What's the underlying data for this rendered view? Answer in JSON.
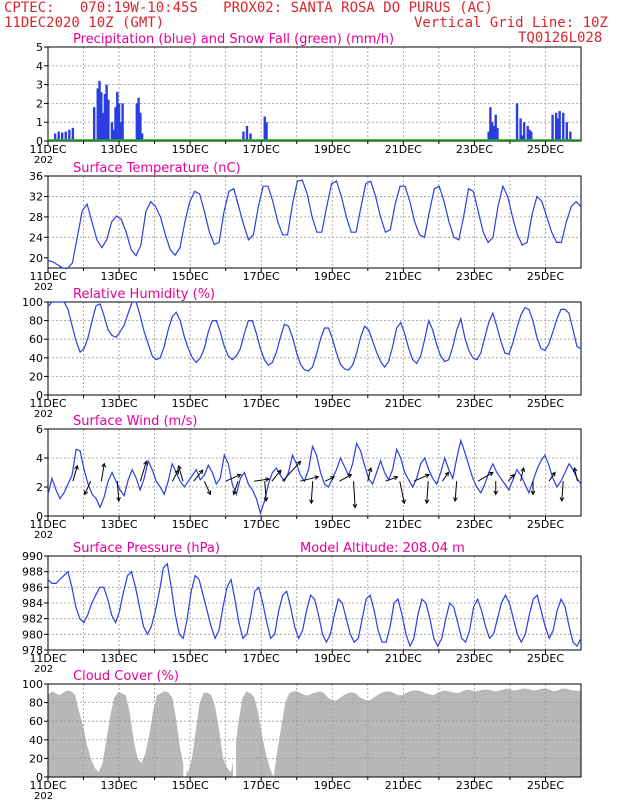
{
  "header": {
    "line1_left": "CPTEC:   070:19W-10:45S   PROX02: SANTA ROSA DO PURUS (AC)",
    "line2_left": "11DEC2020 10Z (GMT)",
    "line2_right": "Vertical Grid Line: 10Z",
    "code": "TQ0126L028"
  },
  "colors": {
    "header_text": "#d9262c",
    "title_text": "#e4009a",
    "line": "#2b3fe0",
    "precip_bar": "#2b3fe0",
    "snow": "#16b016",
    "cloud_fill": "#b8b8b8",
    "grid": "#999999"
  },
  "x_ticks": [
    "11DEC",
    "13DEC",
    "15DEC",
    "17DEC",
    "19DEC",
    "21DEC",
    "23DEC",
    "25DEC"
  ],
  "x_tick_overlap_text": "202",
  "chart_data": [
    {
      "id": "precip",
      "type": "bar",
      "title": "Precipitation (blue) and Snow Fall (green) (mm/h)",
      "ylim": [
        0,
        5
      ],
      "yticks": [
        "0",
        "1",
        "2",
        "3",
        "4",
        "5"
      ],
      "snow_value": 0,
      "x": [
        0.2,
        0.3,
        0.4,
        0.5,
        0.6,
        0.7,
        1.3,
        1.4,
        1.45,
        1.5,
        1.55,
        1.6,
        1.65,
        1.7,
        1.8,
        1.85,
        1.9,
        1.95,
        2.0,
        2.05,
        2.1,
        2.5,
        2.55,
        2.6,
        2.65,
        5.5,
        5.6,
        5.7,
        6.1,
        6.15,
        12.4,
        12.45,
        12.5,
        12.55,
        12.6,
        12.65,
        13.2,
        13.3,
        13.35,
        13.4,
        13.5,
        13.55,
        13.6,
        14.2,
        14.3,
        14.35,
        14.4,
        14.5,
        14.6,
        14.7
      ],
      "values": [
        0.4,
        0.5,
        0.45,
        0.5,
        0.6,
        0.7,
        1.8,
        2.8,
        3.2,
        2.6,
        1.5,
        2.5,
        3.0,
        2.2,
        1.0,
        0.6,
        1.8,
        2.6,
        2.0,
        1.0,
        2.0,
        2.0,
        2.3,
        1.5,
        0.4,
        0.5,
        0.8,
        0.4,
        1.3,
        1.0,
        0.5,
        1.8,
        1.0,
        0.8,
        1.4,
        0.7,
        2.0,
        1.2,
        0.3,
        1.0,
        0.8,
        0.6,
        0.5,
        1.4,
        1.5,
        1.2,
        1.6,
        1.5,
        1.0,
        0.5
      ]
    },
    {
      "id": "temp",
      "type": "line",
      "title": "Surface Temperature (nC)",
      "ylim": [
        18,
        36
      ],
      "yticks": [
        "20",
        "24",
        "28",
        "32",
        "36"
      ],
      "series": [
        {
          "values": [
            19.5,
            19.2,
            18.6,
            18.0,
            17.9,
            19.0,
            24.0,
            29.2,
            30.5,
            27.0,
            23.5,
            22.0,
            23.5,
            27.0,
            28.2,
            27.5,
            25.0,
            21.6,
            20.4,
            22.5,
            29.0,
            31.0,
            30.0,
            28.0,
            24.5,
            21.6,
            20.5,
            22.0,
            27.0,
            31.0,
            33.0,
            32.5,
            29.0,
            25.0,
            22.6,
            23.0,
            29.0,
            33.0,
            33.5,
            30.0,
            26.5,
            23.5,
            24.5,
            30.0,
            34.0,
            34.0,
            31.0,
            27.0,
            24.5,
            24.5,
            30.5,
            35.0,
            35.2,
            32.5,
            28.0,
            25.0,
            25.0,
            30.0,
            34.5,
            35.0,
            32.0,
            28.0,
            25.0,
            25.0,
            30.0,
            34.5,
            35.0,
            32.0,
            28.0,
            25.0,
            25.5,
            30.5,
            34.0,
            34.0,
            31.0,
            27.0,
            24.5,
            24.0,
            29.0,
            33.5,
            34.0,
            31.0,
            27.0,
            24.0,
            23.5,
            28.0,
            33.5,
            33.0,
            29.0,
            25.0,
            23.0,
            24.0,
            30.0,
            34.0,
            32.0,
            28.0,
            24.5,
            22.5,
            23.0,
            28.5,
            32.0,
            31.0,
            28.0,
            25.0,
            23.0,
            23.0,
            27.0,
            30.0,
            31.0,
            30.0
          ]
        }
      ]
    },
    {
      "id": "rh",
      "type": "line",
      "title": "Relative Humidity (%)",
      "ylim": [
        0,
        100
      ],
      "yticks": [
        "0",
        "20",
        "40",
        "60",
        "80",
        "100"
      ],
      "series": [
        {
          "values": [
            95,
            100,
            100,
            100,
            100,
            92,
            75,
            58,
            46,
            50,
            62,
            80,
            96,
            98,
            85,
            70,
            64,
            62,
            68,
            75,
            88,
            100,
            100,
            85,
            68,
            55,
            42,
            38,
            40,
            52,
            70,
            84,
            89,
            80,
            63,
            50,
            40,
            35,
            40,
            50,
            68,
            80,
            80,
            68,
            52,
            42,
            38,
            42,
            50,
            66,
            80,
            80,
            66,
            50,
            38,
            32,
            35,
            46,
            62,
            76,
            74,
            62,
            46,
            33,
            27,
            26,
            30,
            44,
            60,
            72,
            72,
            60,
            45,
            33,
            28,
            27,
            32,
            45,
            62,
            74,
            70,
            58,
            46,
            36,
            30,
            36,
            52,
            72,
            78,
            66,
            50,
            38,
            34,
            42,
            60,
            80,
            70,
            54,
            42,
            36,
            38,
            52,
            70,
            82,
            62,
            48,
            40,
            38,
            45,
            62,
            78,
            88,
            74,
            58,
            45,
            44,
            56,
            72,
            86,
            94,
            92,
            80,
            62,
            50,
            48,
            55,
            68,
            82,
            92,
            92,
            88,
            70,
            52,
            50
          ]
        }
      ]
    },
    {
      "id": "wind",
      "type": "line",
      "title": "Surface Wind (m/s)",
      "ylim": [
        0,
        6
      ],
      "yticks": [
        "0",
        "2",
        "4",
        "6"
      ],
      "series": [
        {
          "values": [
            1.5,
            2.6,
            1.8,
            1.2,
            1.6,
            2.2,
            2.8,
            4.6,
            4.5,
            3.2,
            2.2,
            1.5,
            1.2,
            0.6,
            1.3,
            2.4,
            3.0,
            2.4,
            1.8,
            1.4,
            2.5,
            3.2,
            2.6,
            1.8,
            2.6,
            3.8,
            3.2,
            2.4,
            2.0,
            1.5,
            2.4,
            3.6,
            3.0,
            2.4,
            2.0,
            2.4,
            2.8,
            3.2,
            2.5,
            2.8,
            3.5,
            3.0,
            2.2,
            2.6,
            4.2,
            3.6,
            2.2,
            1.5,
            2.6,
            3.0,
            2.2,
            1.8,
            1.2,
            0.2,
            1.0,
            2.2,
            3.0,
            3.3,
            2.8,
            2.4,
            3.0,
            4.2,
            3.6,
            2.8,
            2.4,
            3.2,
            4.8,
            4.2,
            3.0,
            2.2,
            2.0,
            2.6,
            3.2,
            4.0,
            3.4,
            2.8,
            3.6,
            5.0,
            4.5,
            3.5,
            2.6,
            2.2,
            3.0,
            3.8,
            3.0,
            2.5,
            3.2,
            4.6,
            4.0,
            3.0,
            2.5,
            2.0,
            2.6,
            3.6,
            4.0,
            3.2,
            2.6,
            2.2,
            3.0,
            4.0,
            3.2,
            2.6,
            4.0,
            5.2,
            4.4,
            3.5,
            2.6,
            2.0,
            1.6,
            2.2,
            3.0,
            3.6,
            3.0,
            2.6,
            2.2,
            1.8,
            2.5,
            3.2,
            2.8,
            2.2,
            1.6,
            2.4,
            3.2,
            3.8,
            4.2,
            3.5,
            2.6,
            2.0,
            2.4,
            3.0,
            3.6,
            3.2,
            2.6,
            2.2
          ]
        }
      ],
      "vectors": [
        {
          "x": 0.7,
          "dx": 0.15,
          "dy": 0.7
        },
        {
          "x": 1.2,
          "dx": -0.2,
          "dy": -0.6
        },
        {
          "x": 1.5,
          "dx": 0.1,
          "dy": 0.8
        },
        {
          "x": 1.95,
          "dx": 0.05,
          "dy": -0.9
        },
        {
          "x": 2.6,
          "dx": 0.2,
          "dy": 0.9
        },
        {
          "x": 3.5,
          "dx": 0.2,
          "dy": 0.5
        },
        {
          "x": 3.8,
          "dx": -0.15,
          "dy": 0.7
        },
        {
          "x": 4.1,
          "dx": 0.3,
          "dy": 0.5
        },
        {
          "x": 4.4,
          "dx": 0.2,
          "dy": -0.6
        },
        {
          "x": 5.0,
          "dx": 0.5,
          "dy": 0.3
        },
        {
          "x": 5.35,
          "dx": -0.15,
          "dy": -0.6
        },
        {
          "x": 5.8,
          "dx": 0.5,
          "dy": 0.1
        },
        {
          "x": 6.1,
          "dx": 0.05,
          "dy": -0.9
        },
        {
          "x": 6.3,
          "dx": 0.3,
          "dy": 0.5
        },
        {
          "x": 6.6,
          "dx": 0.6,
          "dy": 0.9
        },
        {
          "x": 7.1,
          "dx": 0.6,
          "dy": 0.2
        },
        {
          "x": 7.45,
          "dx": -0.05,
          "dy": -1.0
        },
        {
          "x": 7.8,
          "dx": 0.3,
          "dy": 0.2
        },
        {
          "x": 8.2,
          "dx": 0.4,
          "dy": 0.3
        },
        {
          "x": 8.6,
          "dx": 0.05,
          "dy": -1.2
        },
        {
          "x": 9.0,
          "dx": 0.1,
          "dy": 0.6
        },
        {
          "x": 9.5,
          "dx": 0.4,
          "dy": 0.2
        },
        {
          "x": 9.9,
          "dx": 0.15,
          "dy": -1.0
        },
        {
          "x": 10.3,
          "dx": 0.5,
          "dy": 0.3
        },
        {
          "x": 10.7,
          "dx": -0.05,
          "dy": -1.0
        },
        {
          "x": 11.1,
          "dx": 0.2,
          "dy": 0.4
        },
        {
          "x": 11.5,
          "dx": -0.05,
          "dy": -0.9
        },
        {
          "x": 12.1,
          "dx": 0.5,
          "dy": 0.4
        },
        {
          "x": 12.6,
          "dx": 0.0,
          "dy": -0.6
        },
        {
          "x": 12.95,
          "dx": 0.2,
          "dy": 0.3
        },
        {
          "x": 13.3,
          "dx": 0.1,
          "dy": 0.6
        },
        {
          "x": 13.65,
          "dx": 0.0,
          "dy": -0.6
        },
        {
          "x": 14.1,
          "dx": 0.2,
          "dy": 0.4
        },
        {
          "x": 14.5,
          "dx": -0.05,
          "dy": -0.9
        },
        {
          "x": 14.9,
          "dx": -0.1,
          "dy": 0.6
        }
      ]
    },
    {
      "id": "pressure",
      "type": "line",
      "title": "Surface Pressure (hPa)",
      "annotation": "Model Altitude: 208.04 m",
      "ylim": [
        978,
        990
      ],
      "yticks": [
        "978",
        "980",
        "982",
        "984",
        "986",
        "988",
        "990"
      ],
      "series": [
        {
          "values": [
            987.0,
            986.5,
            986.5,
            987.0,
            987.5,
            988.0,
            986.0,
            983.5,
            982.0,
            981.5,
            982.5,
            984.0,
            985.0,
            986.0,
            986.0,
            984.5,
            982.5,
            981.5,
            983.0,
            985.5,
            987.5,
            988.0,
            986.0,
            983.5,
            981.0,
            980.0,
            981.0,
            983.0,
            985.5,
            988.5,
            989.0,
            986.0,
            982.5,
            980.0,
            979.5,
            982.0,
            985.5,
            987.5,
            987.0,
            985.0,
            983.0,
            981.0,
            979.5,
            980.5,
            983.5,
            986.0,
            987.0,
            984.5,
            981.5,
            979.5,
            980.0,
            982.5,
            985.5,
            986.0,
            984.0,
            981.5,
            979.5,
            980.0,
            983.0,
            985.0,
            985.5,
            983.5,
            981.0,
            979.5,
            980.5,
            983.0,
            985.0,
            984.5,
            982.5,
            980.0,
            979.0,
            980.0,
            982.5,
            984.5,
            984.0,
            982.0,
            980.0,
            979.0,
            979.5,
            982.0,
            984.5,
            985.0,
            983.0,
            980.5,
            979.0,
            979.0,
            981.0,
            984.0,
            984.5,
            982.5,
            980.0,
            978.5,
            979.5,
            982.5,
            984.5,
            984.0,
            982.0,
            979.5,
            978.5,
            979.5,
            982.0,
            984.0,
            983.5,
            981.5,
            979.5,
            979.0,
            980.5,
            983.5,
            984.5,
            983.0,
            981.0,
            979.5,
            980.0,
            982.0,
            984.0,
            985.0,
            984.0,
            982.0,
            980.0,
            979.0,
            980.0,
            982.5,
            984.5,
            985.0,
            983.0,
            981.0,
            979.5,
            980.5,
            983.0,
            984.5,
            983.5,
            981.0,
            979.0,
            978.5,
            979.5
          ]
        }
      ]
    },
    {
      "id": "cloud",
      "type": "area",
      "title": "Cloud Cover (%)",
      "ylim": [
        0,
        100
      ],
      "yticks": [
        "0",
        "20",
        "40",
        "60",
        "80",
        "100"
      ],
      "series": [
        {
          "values": [
            88,
            92,
            90,
            88,
            91,
            93,
            92,
            88,
            70,
            55,
            35,
            20,
            10,
            5,
            15,
            40,
            65,
            85,
            91,
            90,
            88,
            70,
            40,
            20,
            15,
            25,
            45,
            70,
            88,
            90,
            92,
            91,
            85,
            60,
            30,
            10,
            5,
            20,
            50,
            80,
            90,
            91,
            88,
            75,
            50,
            20,
            10,
            5,
            25,
            60,
            85,
            92,
            90,
            86,
            70,
            45,
            25,
            10,
            0,
            30,
            55,
            80,
            90,
            92,
            92,
            90,
            88,
            88,
            90,
            91,
            92,
            90,
            85,
            83,
            82,
            85,
            88,
            90,
            91,
            90,
            86,
            84,
            82,
            83,
            86,
            89,
            91,
            92,
            92,
            90,
            88,
            88,
            90,
            92,
            93,
            93,
            92,
            90,
            89,
            88,
            90,
            92,
            93,
            92,
            91,
            90,
            91,
            93,
            94,
            93,
            92,
            93,
            94,
            94,
            93,
            92,
            93,
            94,
            95,
            94,
            93,
            94,
            95,
            95,
            94,
            93,
            94,
            95,
            95,
            94,
            92,
            93,
            95,
            95,
            94,
            93,
            93,
            92
          ]
        }
      ],
      "gaps": [
        3.85,
        5.25
      ]
    }
  ]
}
